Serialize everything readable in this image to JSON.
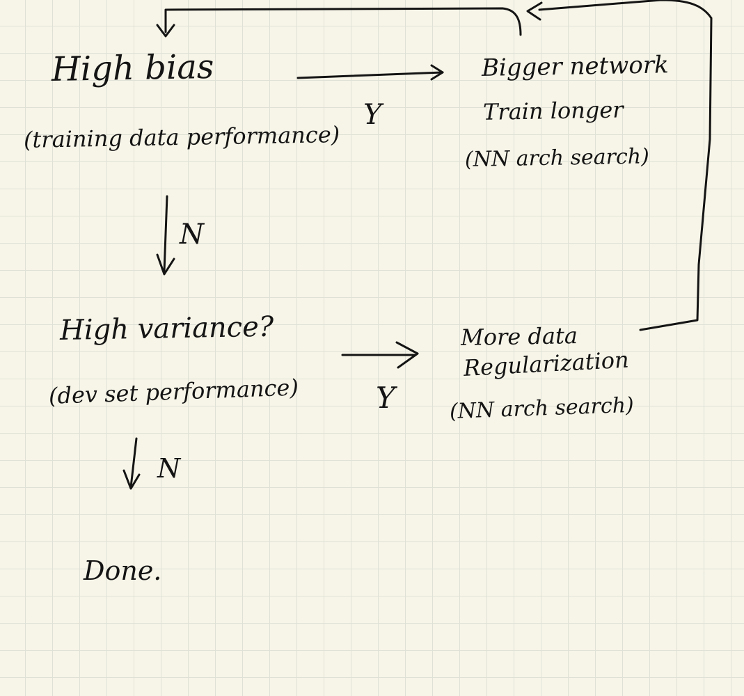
{
  "nodes": {
    "high_bias": {
      "title": "High bias",
      "subtitle": "(training data performance)"
    },
    "bias_fix": {
      "line1": "Bigger network",
      "line2": "Train longer",
      "line3": "(NN arch search)"
    },
    "high_variance": {
      "title": "High variance?",
      "subtitle": "(dev set performance)"
    },
    "variance_fix": {
      "line1": "More data",
      "line2": "Regularization",
      "line3": "(NN arch search)"
    },
    "done": {
      "label": "Done."
    }
  },
  "edge_labels": {
    "bias_yes": "Y",
    "bias_no": "N",
    "variance_yes": "Y",
    "variance_no": "N"
  },
  "colors": {
    "ink": "#141414",
    "paper": "#f7f5e8",
    "grid": "#dfe1d6"
  }
}
